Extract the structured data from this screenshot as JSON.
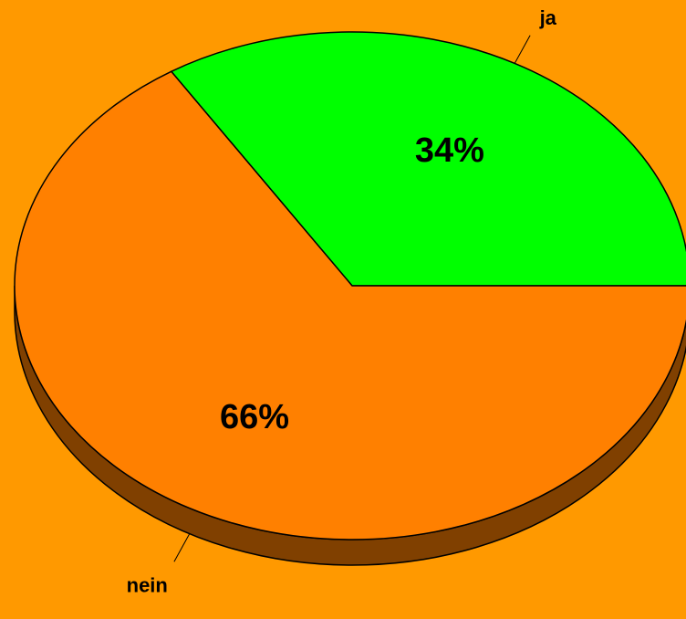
{
  "chart_data": {
    "type": "pie",
    "categories": [
      "ja",
      "nein"
    ],
    "values": [
      34,
      66
    ],
    "value_labels": [
      "34%",
      "66%"
    ],
    "colors": [
      "#00ff00",
      "#ff8000"
    ],
    "side_color": "#804000"
  }
}
